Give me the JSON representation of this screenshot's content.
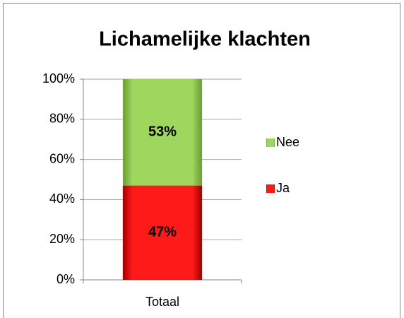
{
  "chart_data": {
    "type": "stacked_bar",
    "title": "Lichamelijke klachten",
    "categories": [
      "Totaal"
    ],
    "series": [
      {
        "name": "Ja",
        "color": "#ff0000",
        "values": [
          47
        ],
        "value_labels": [
          "47%"
        ]
      },
      {
        "name": "Nee",
        "color": "#92d050",
        "values": [
          53
        ],
        "value_labels": [
          "53%"
        ]
      }
    ],
    "ylim": [
      0,
      100
    ],
    "yticks": [
      {
        "value": 0,
        "label": "0%"
      },
      {
        "value": 20,
        "label": "20%"
      },
      {
        "value": 40,
        "label": "40%"
      },
      {
        "value": 60,
        "label": "60%"
      },
      {
        "value": 80,
        "label": "80%"
      },
      {
        "value": 100,
        "label": "100%"
      }
    ],
    "grid": true,
    "legend": "right"
  }
}
